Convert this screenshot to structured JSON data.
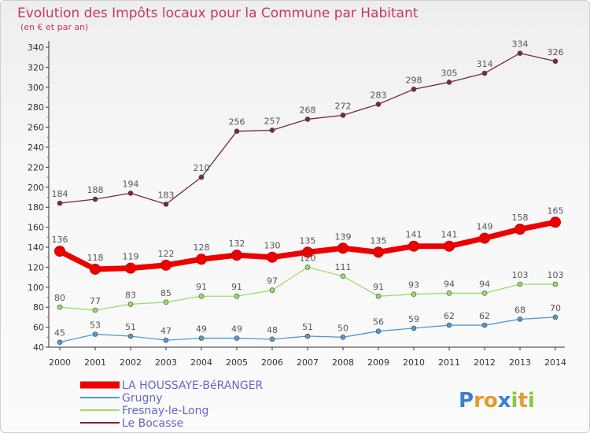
{
  "chart_data": {
    "type": "line",
    "title": "Evolution des Impôts locaux pour la Commune par Habitant",
    "subtitle": "(en € et par an)",
    "xlabel": "",
    "ylabel": "",
    "ylim": [
      40,
      340
    ],
    "yticks": [
      40,
      60,
      80,
      100,
      120,
      140,
      160,
      180,
      200,
      220,
      240,
      260,
      280,
      300,
      320,
      340
    ],
    "grid": false,
    "legend_position": "bottom-left",
    "categories": [
      "2000",
      "2001",
      "2002",
      "2003",
      "2004",
      "2005",
      "2006",
      "2007",
      "2008",
      "2009",
      "2010",
      "2011",
      "2012",
      "2013",
      "2014"
    ],
    "series": [
      {
        "name": "Le Bocasse",
        "color": "#7a2a2e",
        "values": [
          184,
          188,
          194,
          183,
          210,
          256,
          257,
          268,
          272,
          283,
          298,
          305,
          314,
          334,
          326
        ]
      },
      {
        "name": "Fresnay-le-Long",
        "color": "#99dd66",
        "values": [
          80,
          77,
          83,
          85,
          91,
          91,
          97,
          120,
          111,
          91,
          93,
          94,
          94,
          103,
          103
        ]
      },
      {
        "name": "Grugny",
        "color": "#5599cc",
        "values": [
          45,
          53,
          51,
          47,
          49,
          49,
          48,
          51,
          50,
          56,
          59,
          62,
          62,
          68,
          70
        ]
      },
      {
        "name": "LA HOUSSAYE-BéRANGER",
        "color": "#ee0000",
        "values": [
          136,
          118,
          119,
          122,
          128,
          132,
          130,
          135,
          139,
          135,
          141,
          141,
          149,
          158,
          165
        ]
      }
    ]
  },
  "legend": {
    "items": [
      {
        "label": "LA HOUSSAYE-BéRANGER",
        "color": "#ee0000",
        "thick": true
      },
      {
        "label": "Grugny",
        "color": "#5599cc",
        "thick": false
      },
      {
        "label": "Fresnay-le-Long",
        "color": "#99dd66",
        "thick": false
      },
      {
        "label": "Le Bocasse",
        "color": "#7a2a2e",
        "thick": false
      }
    ]
  },
  "logo": {
    "text": "Proxiti"
  }
}
